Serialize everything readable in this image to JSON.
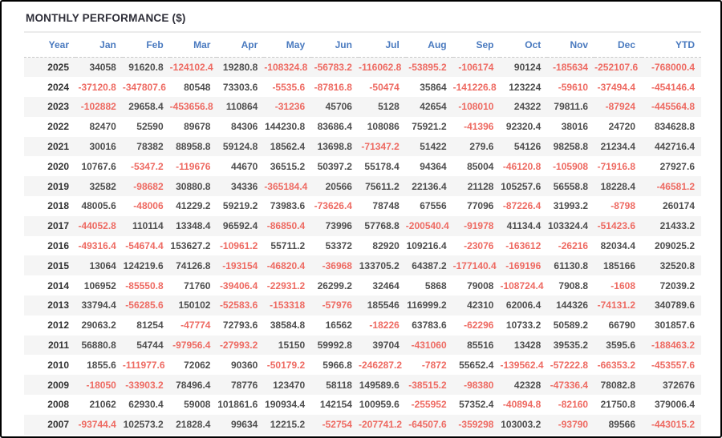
{
  "title": "MONTHLY PERFORMANCE ($)",
  "colors": {
    "header_text": "#4a7abf",
    "positive_value": "#4e4e4e",
    "negative_value": "#ee6a62",
    "stripe_row": "#f5f5f5",
    "window_border": "#000000"
  },
  "table": {
    "columns": [
      "Year",
      "Jan",
      "Feb",
      "Mar",
      "Apr",
      "May",
      "Jun",
      "Jul",
      "Aug",
      "Sep",
      "Oct",
      "Nov",
      "Dec",
      "YTD"
    ],
    "rows": [
      {
        "year": "2025",
        "values": [
          "34058",
          "91620.8",
          "-124102.4",
          "19280.8",
          "-108324.8",
          "-56783.2",
          "-116062.8",
          "-53895.2",
          "-106174",
          "90124",
          "-185634",
          "-252107.6",
          "-768000.4"
        ]
      },
      {
        "year": "2024",
        "values": [
          "-37120.8",
          "-347807.6",
          "80548",
          "73303.6",
          "-5535.6",
          "-87816.8",
          "-50474",
          "35864",
          "-141226.8",
          "123224",
          "-59610",
          "-37494.4",
          "-454146.4"
        ]
      },
      {
        "year": "2023",
        "values": [
          "-102882",
          "29658.4",
          "-453656.8",
          "110864",
          "-31236",
          "45706",
          "5128",
          "42654",
          "-108010",
          "24322",
          "79811.6",
          "-87924",
          "-445564.8"
        ]
      },
      {
        "year": "2022",
        "values": [
          "82470",
          "52590",
          "89678",
          "84306",
          "144230.8",
          "83686.4",
          "108086",
          "75921.2",
          "-41396",
          "92320.4",
          "38016",
          "24720",
          "834628.8"
        ]
      },
      {
        "year": "2021",
        "values": [
          "30016",
          "78382",
          "88958.8",
          "59124.8",
          "18562.4",
          "13698.8",
          "-71347.2",
          "51422",
          "279.6",
          "54126",
          "98258.8",
          "21234.4",
          "442716.4"
        ]
      },
      {
        "year": "2020",
        "values": [
          "10767.6",
          "-5347.2",
          "-119676",
          "44670",
          "36515.2",
          "50397.2",
          "55178.4",
          "94364",
          "85004",
          "-46120.8",
          "-105908",
          "-71916.8",
          "27927.6"
        ]
      },
      {
        "year": "2019",
        "values": [
          "32582",
          "-98682",
          "30880.8",
          "34336",
          "-365184.4",
          "20566",
          "75611.2",
          "22136.4",
          "21128",
          "105257.6",
          "56558.8",
          "18228.4",
          "-46581.2"
        ]
      },
      {
        "year": "2018",
        "values": [
          "48005.6",
          "-48006",
          "41229.2",
          "59219.2",
          "73983.6",
          "-73626.4",
          "78748",
          "67556",
          "77096",
          "-87226.4",
          "31993.2",
          "-8798",
          "260174"
        ]
      },
      {
        "year": "2017",
        "values": [
          "-44052.8",
          "110114",
          "13348.4",
          "96592.4",
          "-86850.4",
          "73996",
          "57768.8",
          "-200540.4",
          "-91978",
          "41134.4",
          "103324.4",
          "-51423.6",
          "21433.2"
        ]
      },
      {
        "year": "2016",
        "values": [
          "-49316.4",
          "-54674.4",
          "153627.2",
          "-10961.2",
          "55711.2",
          "53372",
          "82920",
          "109216.4",
          "-23076",
          "-163612",
          "-26216",
          "82034.4",
          "209025.2"
        ]
      },
      {
        "year": "2015",
        "values": [
          "13064",
          "124219.6",
          "74126.8",
          "-193154",
          "-46820.4",
          "-36968",
          "133705.2",
          "64387.2",
          "-177140.4",
          "-169196",
          "61130.8",
          "185166",
          "32520.8"
        ]
      },
      {
        "year": "2014",
        "values": [
          "106952",
          "-85550.8",
          "71760",
          "-39406.4",
          "-22931.2",
          "26299.2",
          "32464",
          "5868",
          "79008",
          "-108724.4",
          "7908.8",
          "-1608",
          "72039.2"
        ]
      },
      {
        "year": "2013",
        "values": [
          "33794.4",
          "-56285.6",
          "150102",
          "-52583.6",
          "-153318",
          "-57976",
          "185546",
          "116999.2",
          "42310",
          "62006.4",
          "144326",
          "-74131.2",
          "340789.6"
        ]
      },
      {
        "year": "2012",
        "values": [
          "29063.2",
          "81254",
          "-47774",
          "72793.6",
          "38584.8",
          "16562",
          "-18226",
          "63783.6",
          "-62296",
          "10733.2",
          "50589.2",
          "66790",
          "301857.6"
        ]
      },
      {
        "year": "2011",
        "values": [
          "56880.8",
          "54744",
          "-97956.4",
          "-27993.2",
          "15150",
          "59992.8",
          "39704",
          "-431060",
          "85516",
          "13428",
          "39535.2",
          "3595.6",
          "-188463.2"
        ]
      },
      {
        "year": "2010",
        "values": [
          "1855.6",
          "-111977.6",
          "72062",
          "90360",
          "-50179.2",
          "5966.8",
          "-246287.2",
          "-7872",
          "55652.4",
          "-139562.4",
          "-57222.8",
          "-66353.2",
          "-453557.6"
        ]
      },
      {
        "year": "2009",
        "values": [
          "-18050",
          "-33903.2",
          "78496.4",
          "78776",
          "123470",
          "58118",
          "149589.6",
          "-38515.2",
          "-98380",
          "42328",
          "-47336.4",
          "78082.8",
          "372676"
        ]
      },
      {
        "year": "2008",
        "values": [
          "21062",
          "62930.4",
          "59008",
          "101861.6",
          "190934.4",
          "142154",
          "100959.6",
          "-255952",
          "57352.4",
          "-40894.8",
          "-82160",
          "21750.8",
          "379006.4"
        ]
      },
      {
        "year": "2007",
        "values": [
          "-93744.4",
          "102573.2",
          "21828.4",
          "99634",
          "12215.2",
          "-52754",
          "-207741.2",
          "-64507.6",
          "-359298",
          "103003.2",
          "-93790",
          "89566",
          "-443015.2"
        ]
      }
    ]
  }
}
